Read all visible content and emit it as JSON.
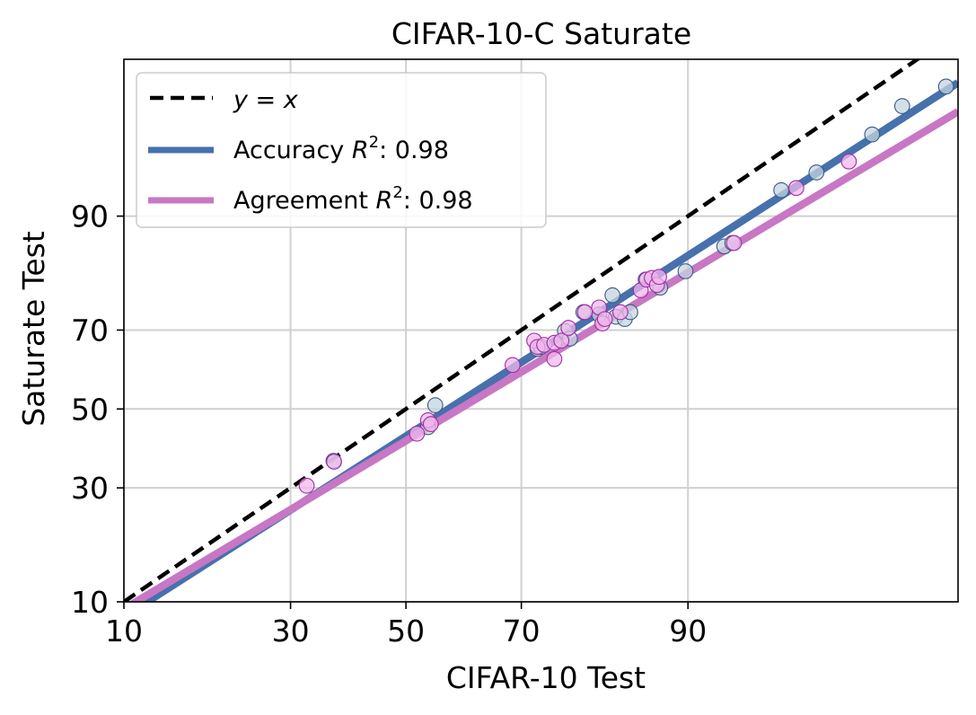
{
  "chart_data": {
    "type": "scatter",
    "title": "CIFAR-10-C Saturate",
    "xlabel": "CIFAR-10 Test",
    "ylabel": "Saturate Test",
    "scale": "probit",
    "xlim": [
      10,
      99.4
    ],
    "ylim": [
      10,
      99.0
    ],
    "xticks": [
      10,
      30,
      50,
      70,
      90
    ],
    "yticks": [
      10,
      30,
      50,
      70,
      90
    ],
    "grid": true,
    "legend_position": "top-left",
    "reference_line": {
      "name": "y = x",
      "style": "dashed",
      "color": "#000000"
    },
    "series": [
      {
        "name": "Accuracy",
        "r2_label": "0.98",
        "line_color": "#4671ad",
        "point_fill": "#c4d4e0",
        "point_edge": "#3b5a84",
        "fit": [
          [
            11.5,
            9.6
          ],
          [
            99.4,
            98.5
          ]
        ],
        "points": [
          [
            37.1,
            36.5
          ],
          [
            54.0,
            45.2
          ],
          [
            55.3,
            51.0
          ],
          [
            72.5,
            65.5
          ],
          [
            73.0,
            66.0
          ],
          [
            76.5,
            69.8
          ],
          [
            77.2,
            68.0
          ],
          [
            79.0,
            74.0
          ],
          [
            81.0,
            73.5
          ],
          [
            82.6,
            77.5
          ],
          [
            83.0,
            73.0
          ],
          [
            84.0,
            72.5
          ],
          [
            84.6,
            74.0
          ],
          [
            86.2,
            80.5
          ],
          [
            87.6,
            79.0
          ],
          [
            89.8,
            82.0
          ],
          [
            92.6,
            86.0
          ],
          [
            93.1,
            86.5
          ],
          [
            95.6,
            92.7
          ],
          [
            96.9,
            94.2
          ],
          [
            98.3,
            96.6
          ],
          [
            98.8,
            97.8
          ],
          [
            99.3,
            98.4
          ]
        ]
      },
      {
        "name": "Agreement",
        "r2_label": "0.98",
        "line_color": "#c777c4",
        "point_fill": "#f0b8ec",
        "point_edge": "#a22ba2",
        "fit": [
          [
            10.5,
            9.6
          ],
          [
            99.4,
            97.6
          ]
        ],
        "points": [
          [
            32.6,
            30.5
          ],
          [
            37.2,
            36.3
          ],
          [
            52.0,
            43.5
          ],
          [
            54.0,
            47.0
          ],
          [
            54.5,
            46.0
          ],
          [
            68.6,
            61.5
          ],
          [
            72.0,
            67.5
          ],
          [
            72.5,
            66.0
          ],
          [
            73.5,
            66.5
          ],
          [
            75.0,
            67.0
          ],
          [
            75.0,
            63.0
          ],
          [
            76.0,
            67.5
          ],
          [
            77.0,
            70.5
          ],
          [
            79.2,
            74.0
          ],
          [
            81.0,
            75.0
          ],
          [
            81.4,
            71.5
          ],
          [
            81.7,
            72.5
          ],
          [
            83.5,
            74.0
          ],
          [
            85.7,
            78.5
          ],
          [
            86.3,
            80.5
          ],
          [
            86.8,
            80.8
          ],
          [
            87.3,
            79.5
          ],
          [
            87.5,
            81.0
          ],
          [
            93.2,
            86.5
          ],
          [
            96.2,
            92.9
          ],
          [
            97.8,
            95.0
          ]
        ]
      }
    ]
  }
}
